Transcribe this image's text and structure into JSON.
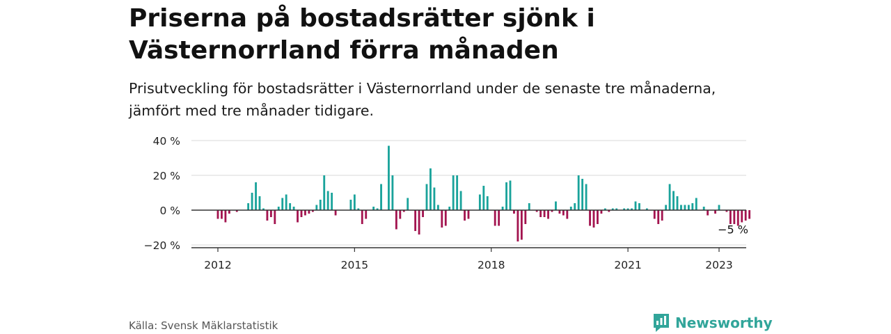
{
  "title": "Priserna på bostadsrätter sjönk i Västernorrland förra månaden",
  "subtitle": "Prisutveckling för bostadsrätter i Västernorrland under de senaste tre månaderna, jämfört med tre månader tidigare.",
  "source": "Källa: Svensk Mäklarstatistik",
  "brand": {
    "name": "Newsworthy",
    "icon": "newsworthy-logo-icon",
    "color": "#31a59a"
  },
  "colors": {
    "positive": "#1aa39b",
    "negative": "#a3144f",
    "grid": "#d9d9d9",
    "baseline": "#333333"
  },
  "chart_data": {
    "type": "bar",
    "title": "",
    "xlabel": "",
    "ylabel": "",
    "ylim": [
      -20,
      40
    ],
    "y_ticks": [
      {
        "value": 40,
        "label": "40 %"
      },
      {
        "value": 20,
        "label": "20 %"
      },
      {
        "value": 0,
        "label": "0 %"
      },
      {
        "value": -20,
        "label": "−20 %"
      }
    ],
    "x_ticks": [
      {
        "value": "2012-01",
        "label": "2012"
      },
      {
        "value": "2015-01",
        "label": "2015"
      },
      {
        "value": "2018-01",
        "label": "2018"
      },
      {
        "value": "2021-01",
        "label": "2021"
      },
      {
        "value": "2023-01",
        "label": "2023"
      }
    ],
    "start": "2012-01",
    "grid": true,
    "legend": "none",
    "annotation": {
      "text": "−5 %",
      "date": "2023-01",
      "value": -5
    },
    "values": [
      -5,
      -5,
      -7,
      -2,
      0,
      -1,
      0,
      0,
      4,
      10,
      16,
      8,
      1,
      -6,
      -4,
      -8,
      2,
      7,
      9,
      4,
      2,
      -7,
      -4,
      -3,
      -2,
      -1,
      3,
      6,
      20,
      11,
      10,
      -3,
      0,
      0,
      0,
      6,
      9,
      1,
      -8,
      -5,
      0,
      2,
      1,
      15,
      0,
      37,
      20,
      -11,
      -5,
      -1,
      7,
      0,
      -12,
      -14,
      -4,
      15,
      24,
      13,
      3,
      -10,
      -9,
      2,
      20,
      20,
      11,
      -6,
      -5,
      0,
      0,
      9,
      14,
      8,
      0,
      -9,
      -9,
      2,
      16,
      17,
      -2,
      -18,
      -17,
      -8,
      4,
      0,
      -1,
      -4,
      -4,
      -5,
      -1,
      5,
      -2,
      -3,
      -5,
      2,
      4,
      20,
      18,
      15,
      -9,
      -10,
      -8,
      -2,
      1,
      -1,
      1,
      1,
      0,
      1,
      1,
      1,
      5,
      4,
      0,
      1,
      0,
      -5,
      -8,
      -6,
      3,
      15,
      11,
      8,
      3,
      3,
      3,
      4,
      7,
      0,
      2,
      -3,
      0,
      -2,
      3,
      0,
      -1,
      -8,
      -8,
      -9,
      -7,
      -6,
      -5,
      0,
      0,
      0
    ]
  }
}
